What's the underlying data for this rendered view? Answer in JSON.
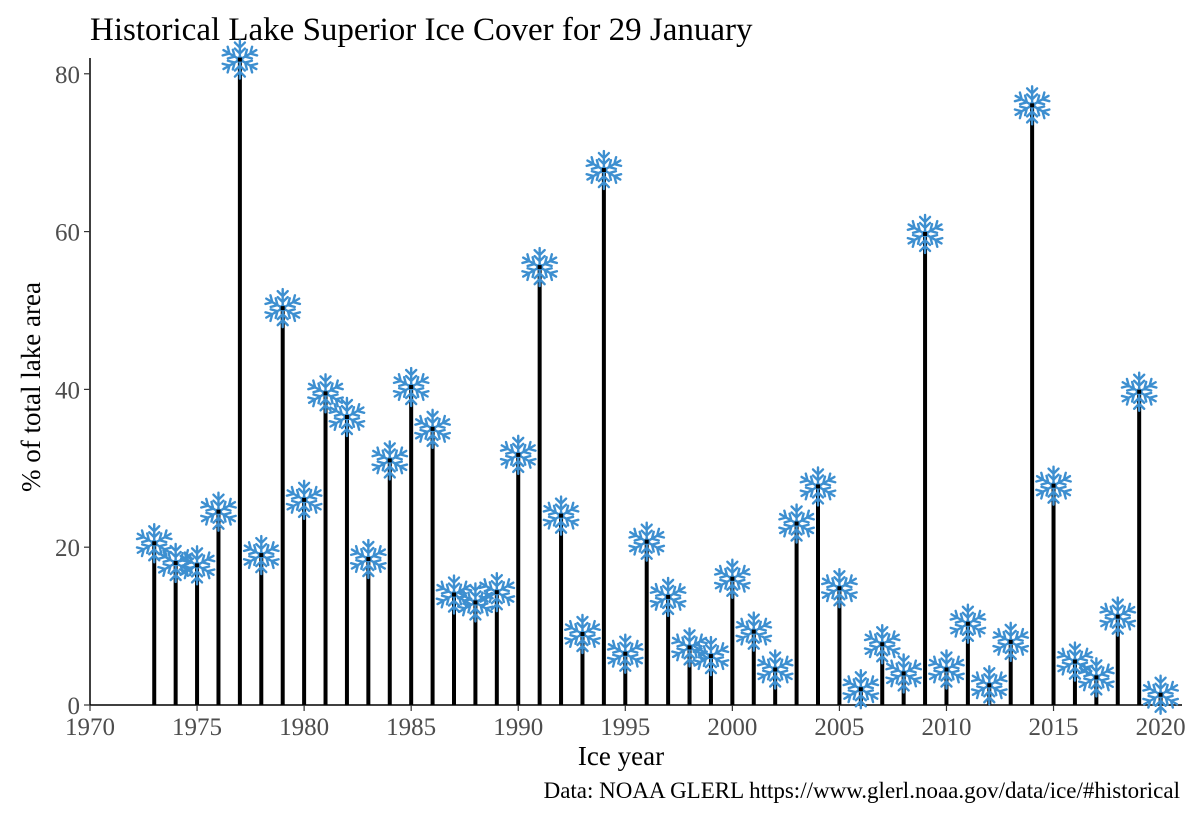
{
  "colors": {
    "flake": "#3d8fd0",
    "stem": "#000000"
  },
  "icon": "snowflake-icon",
  "chart_data": {
    "type": "lollipop",
    "title": "Historical Lake Superior Ice Cover for 29 January",
    "xlabel": "Ice year",
    "ylabel": "% of total lake area",
    "caption": "Data: NOAA GLERL https://www.glerl.noaa.gov/data/ice/#historical",
    "xlim": [
      1970,
      2021
    ],
    "ylim": [
      0,
      82
    ],
    "x_ticks": [
      1970,
      1975,
      1980,
      1985,
      1990,
      1995,
      2000,
      2005,
      2010,
      2015,
      2020
    ],
    "y_ticks": [
      0,
      20,
      40,
      60,
      80
    ],
    "grid": false,
    "x": [
      1973,
      1974,
      1975,
      1976,
      1977,
      1978,
      1979,
      1980,
      1981,
      1982,
      1983,
      1984,
      1985,
      1986,
      1987,
      1988,
      1989,
      1990,
      1991,
      1992,
      1993,
      1994,
      1995,
      1996,
      1997,
      1998,
      1999,
      2000,
      2001,
      2002,
      2003,
      2004,
      2005,
      2006,
      2007,
      2008,
      2009,
      2010,
      2011,
      2012,
      2013,
      2014,
      2015,
      2016,
      2017,
      2018,
      2019,
      2020
    ],
    "values": [
      20.5,
      18,
      17.7,
      24.5,
      81.8,
      19,
      50.3,
      26,
      39.5,
      36.5,
      18.5,
      31,
      40.3,
      35,
      14,
      13,
      14.3,
      31.7,
      55.5,
      24,
      9,
      67.8,
      6.5,
      20.7,
      13.7,
      7.3,
      6.2,
      16,
      9.3,
      4.5,
      23,
      27.7,
      14.8,
      2,
      7.7,
      4,
      59.7,
      4.5,
      10.3,
      2.5,
      8,
      76,
      27.8,
      5.5,
      3.5,
      11.2,
      39.7,
      1.3
    ]
  }
}
